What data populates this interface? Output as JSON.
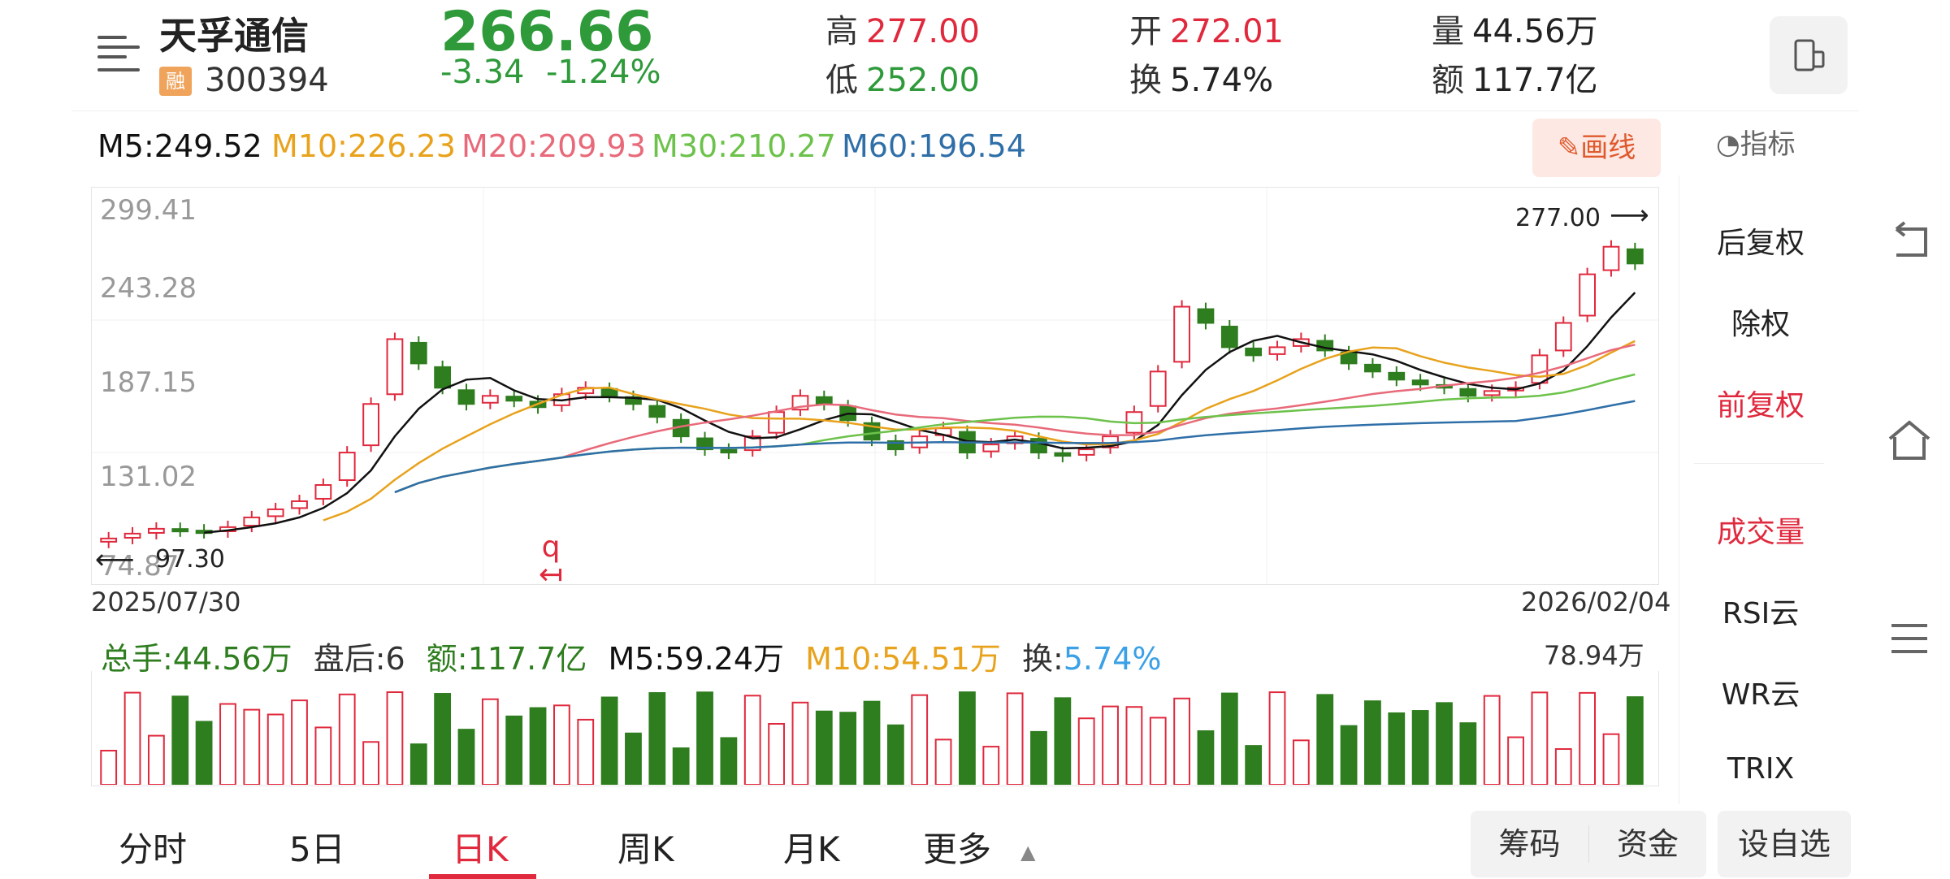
{
  "header": {
    "stock_name": "天孚通信",
    "rong_badge": "融",
    "stock_code": "300394",
    "price": "266.66",
    "change": "-3.34",
    "change_pct": "-1.24%",
    "high_label": "高",
    "high_value": "277.00",
    "low_label": "低",
    "low_value": "252.00",
    "open_label": "开",
    "open_value": "272.01",
    "turnover_label": "换",
    "turnover_value": "5.74%",
    "volume_label": "量",
    "volume_value": "44.56万",
    "amount_label": "额",
    "amount_value": "117.7亿"
  },
  "ma": {
    "m5": "M5:249.52",
    "m10": "M10:226.23",
    "m20": "M20:209.93",
    "m30": "M30:210.27",
    "m60": "M60:196.54"
  },
  "colors": {
    "up": "#e0293d",
    "down": "#2e7d1e",
    "m5": "#111111",
    "m10": "#e8a21c",
    "m20": "#e86a7a",
    "m30": "#6cc24a",
    "m60": "#2f6fa8"
  },
  "toolbar": {
    "draw_label": "画线",
    "indicator_label": "指标"
  },
  "main_chart": {
    "y_ticks": [
      "299.41",
      "243.28",
      "187.15",
      "131.02",
      "74.87"
    ],
    "max_marker": "277.00",
    "min_marker": "97.30",
    "start_date": "2025/07/30",
    "end_date": "2026/02/04",
    "overlay_label": "q"
  },
  "volume": {
    "total": "总手:44.56万",
    "after_hours": "盘后:6",
    "amount": "额:117.7亿",
    "m5": "M5:59.24万",
    "m10": "M10:54.51万",
    "turnover_label": "换:",
    "turnover_value": "5.74%",
    "max": "78.94万"
  },
  "right_panel": {
    "items": [
      "后复权",
      "除权",
      "前复权",
      "成交量",
      "RSI云",
      "WR云",
      "TRIX"
    ]
  },
  "tabs": [
    "分时",
    "5日",
    "日K",
    "周K",
    "月K",
    "更多"
  ],
  "bottom_buttons": {
    "chips": "筹码",
    "funds": "资金",
    "add_watch": "设自选"
  },
  "chart_data": {
    "type": "candlestick",
    "y_range": [
      74.87,
      299.41
    ],
    "series_close_approx": [
      97,
      100,
      103,
      102,
      101,
      104,
      110,
      115,
      120,
      130,
      150,
      180,
      220,
      205,
      190,
      180,
      185,
      182,
      178,
      186,
      190,
      185,
      180,
      172,
      160,
      152,
      150,
      160,
      175,
      185,
      180,
      170,
      158,
      152,
      160,
      165,
      150,
      155,
      160,
      150,
      148,
      152,
      160,
      175,
      200,
      240,
      230,
      215,
      210,
      215,
      220,
      213,
      205,
      200,
      195,
      192,
      190,
      185,
      188,
      190,
      210,
      230,
      260,
      277,
      266.66
    ]
  }
}
